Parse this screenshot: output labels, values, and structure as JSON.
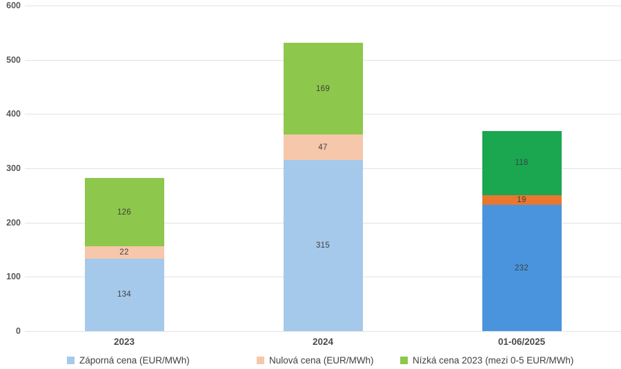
{
  "chart_data": {
    "type": "bar",
    "stacked": true,
    "title": "",
    "xlabel": "",
    "ylabel": "",
    "categories": [
      "2023",
      "2024",
      "01-06/2025"
    ],
    "series": [
      {
        "name": "Záporná cena (EUR/MWh)",
        "values": [
          134,
          315,
          232
        ],
        "colors": [
          "#a5c9ea",
          "#a5c9ea",
          "#4a94dd"
        ],
        "legend_color": "#a5c9ea"
      },
      {
        "name": "Nulová cena (EUR/MWh)",
        "values": [
          22,
          47,
          19
        ],
        "colors": [
          "#f6c7ab",
          "#f6c7ab",
          "#e8772f"
        ],
        "legend_color": "#f6c7ab"
      },
      {
        "name": "Nízká cena 2023 (mezi 0-5 EUR/MWh)",
        "values": [
          126,
          169,
          118
        ],
        "colors": [
          "#8dc74b",
          "#8dc74b",
          "#1aa750"
        ],
        "legend_color": "#8dc74b"
      }
    ],
    "totals": [
      282,
      531,
      369
    ],
    "ylim": [
      0,
      600
    ],
    "yticks": [
      0,
      100,
      200,
      300,
      400,
      500,
      600
    ],
    "grid": true,
    "gridline_color": "#e2e2e2",
    "value_label_color": "#3f3f3f",
    "legend_position": "bottom"
  }
}
